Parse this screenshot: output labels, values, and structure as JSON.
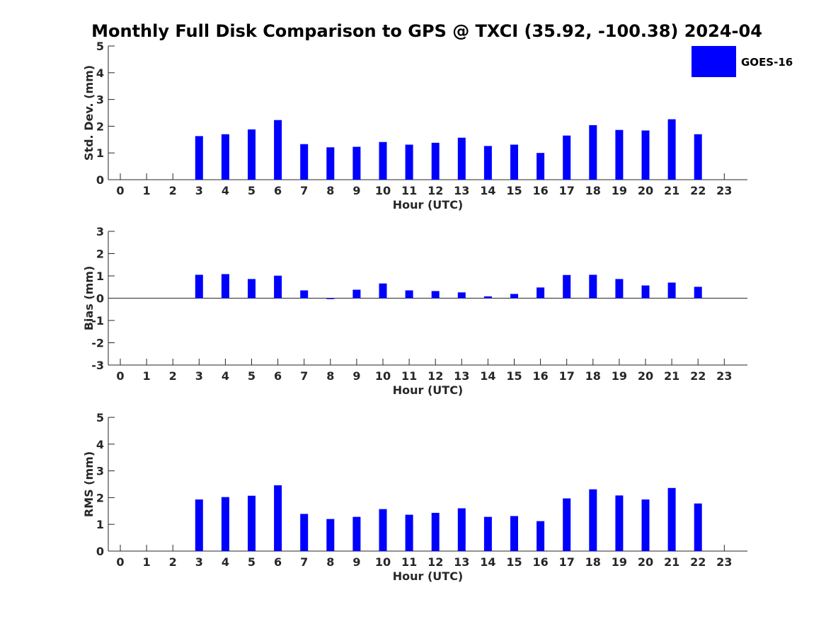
{
  "title": "Monthly Full Disk Comparison to GPS @ TXCI (35.92, -100.38) 2024-04",
  "legend": {
    "label": "GOES-16",
    "color": "#0000ff"
  },
  "chart_data": [
    {
      "type": "bar",
      "xlabel": "Hour (UTC)",
      "ylabel": "Std. Dev. (mm)",
      "ylim": [
        0,
        5
      ],
      "yticks": [
        "0",
        "1",
        "2",
        "3",
        "4",
        "5"
      ],
      "categories": [
        "0",
        "1",
        "2",
        "3",
        "4",
        "5",
        "6",
        "7",
        "8",
        "9",
        "10",
        "11",
        "12",
        "13",
        "14",
        "15",
        "16",
        "17",
        "18",
        "19",
        "20",
        "21",
        "22",
        "23"
      ],
      "series": [
        {
          "name": "GOES-16",
          "values": [
            null,
            null,
            null,
            1.63,
            1.7,
            1.88,
            2.23,
            1.33,
            1.21,
            1.23,
            1.41,
            1.31,
            1.38,
            1.57,
            1.26,
            1.31,
            1.0,
            1.65,
            2.04,
            1.86,
            1.84,
            2.26,
            1.7,
            null
          ]
        }
      ],
      "legend_position": "top-right"
    },
    {
      "type": "bar",
      "xlabel": "Hour (UTC)",
      "ylabel": "Bias (mm)",
      "ylim": [
        -3,
        3
      ],
      "yticks": [
        "-3",
        "-2",
        "-1",
        "0",
        "1",
        "2",
        "3"
      ],
      "categories": [
        "0",
        "1",
        "2",
        "3",
        "4",
        "5",
        "6",
        "7",
        "8",
        "9",
        "10",
        "11",
        "12",
        "13",
        "14",
        "15",
        "16",
        "17",
        "18",
        "19",
        "20",
        "21",
        "22",
        "23"
      ],
      "series": [
        {
          "name": "GOES-16",
          "values": [
            null,
            null,
            null,
            1.05,
            1.08,
            0.86,
            1.01,
            0.35,
            -0.04,
            0.38,
            0.66,
            0.35,
            0.32,
            0.26,
            0.08,
            0.19,
            0.48,
            1.04,
            1.05,
            0.86,
            0.57,
            0.7,
            0.51,
            null
          ]
        }
      ]
    },
    {
      "type": "bar",
      "xlabel": "Hour (UTC)",
      "ylabel": "RMS (mm)",
      "ylim": [
        0,
        5
      ],
      "yticks": [
        "0",
        "1",
        "2",
        "3",
        "4",
        "5"
      ],
      "categories": [
        "0",
        "1",
        "2",
        "3",
        "4",
        "5",
        "6",
        "7",
        "8",
        "9",
        "10",
        "11",
        "12",
        "13",
        "14",
        "15",
        "16",
        "17",
        "18",
        "19",
        "20",
        "21",
        "22",
        "23"
      ],
      "series": [
        {
          "name": "GOES-16",
          "values": [
            null,
            null,
            null,
            1.93,
            2.02,
            2.07,
            2.46,
            1.39,
            1.2,
            1.28,
            1.57,
            1.36,
            1.43,
            1.6,
            1.28,
            1.31,
            1.12,
            1.97,
            2.31,
            2.08,
            1.93,
            2.36,
            1.78,
            null
          ]
        }
      ]
    }
  ]
}
